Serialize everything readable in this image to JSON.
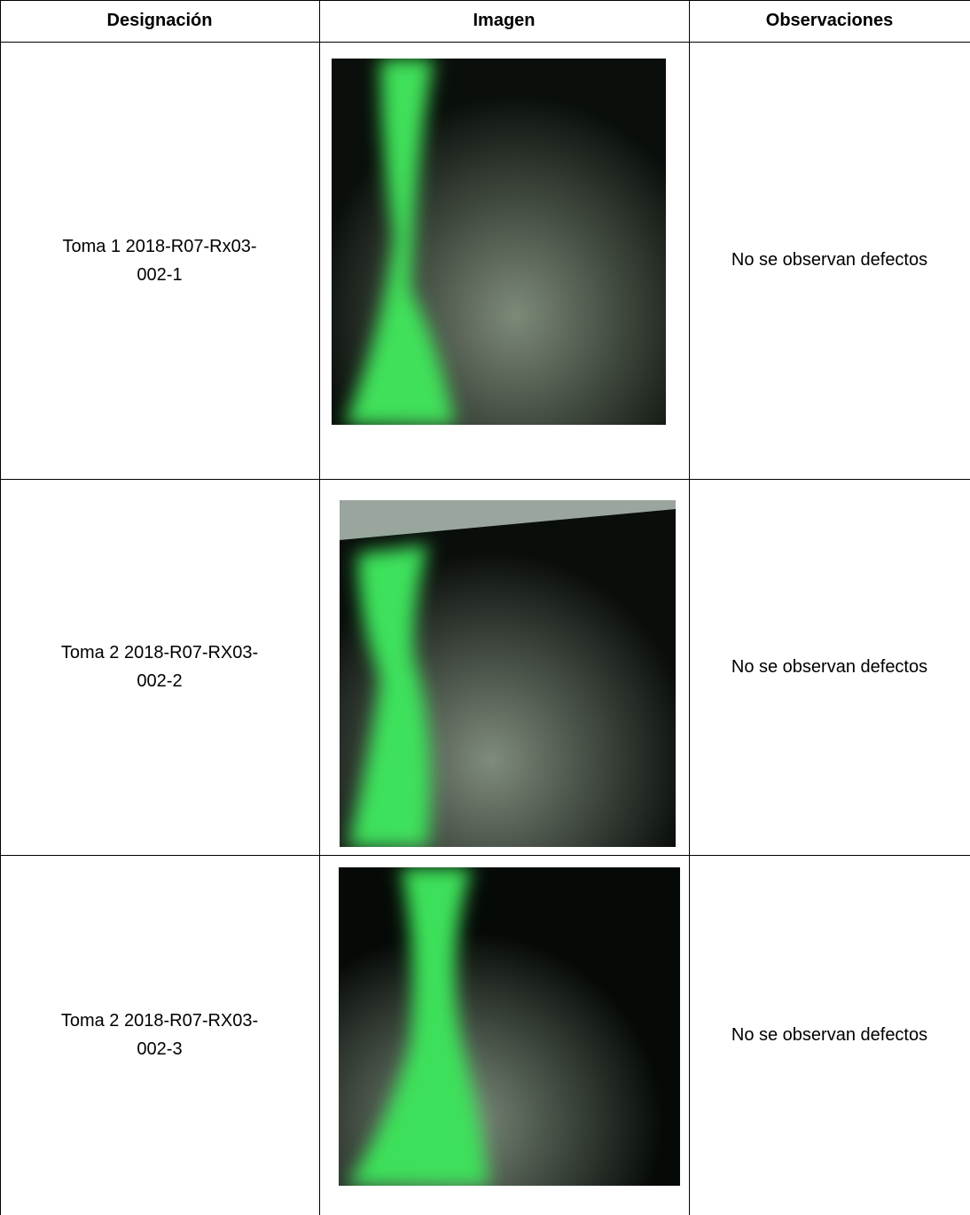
{
  "table": {
    "header": [
      "Designación",
      "Imagen",
      "Observaciones"
    ],
    "rows": [
      [
        "Toma 1 2018-R07-Rx03-002-1",
        "No se observan defectos"
      ],
      [
        "Toma 2 2018-R07-RX03-002-2",
        "No se observan defectos"
      ],
      [
        "Toma 2 2018-R07-RX03-002-3",
        "No se observan defectos"
      ]
    ]
  }
}
